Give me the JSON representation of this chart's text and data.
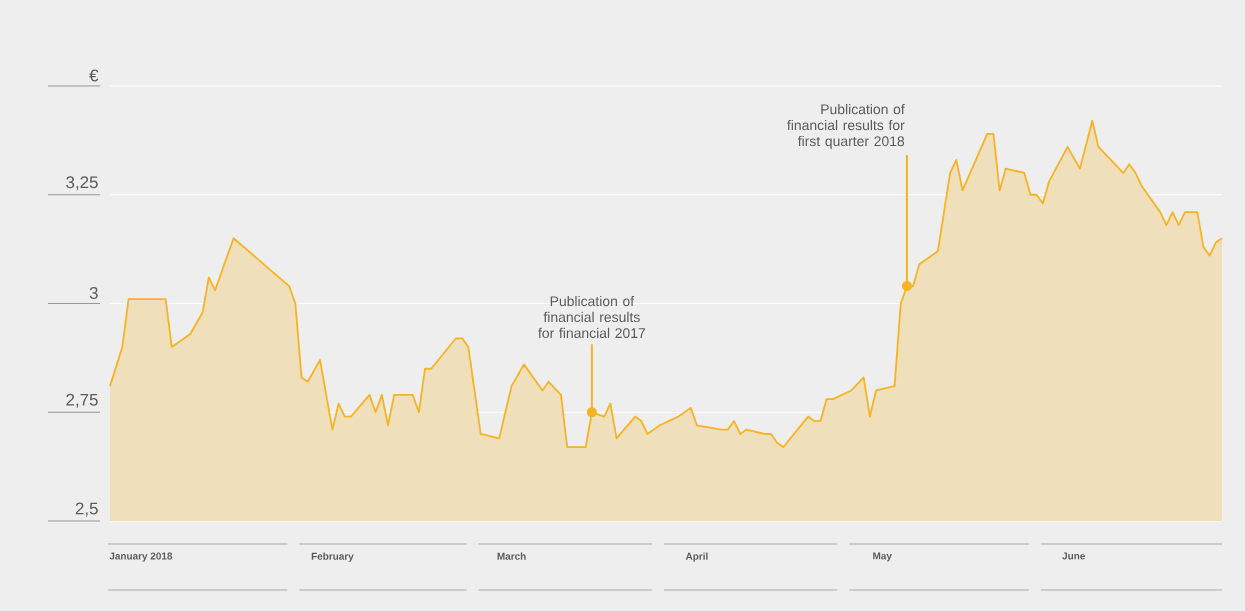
{
  "chart_data": {
    "type": "area",
    "color": "#f6b325",
    "x": [
      "2018-01-01",
      "2018-01-03",
      "2018-01-04",
      "2018-01-10",
      "2018-01-11",
      "2018-01-14",
      "2018-01-16",
      "2018-01-17",
      "2018-01-18",
      "2018-01-21",
      "2018-01-30",
      "2018-01-31",
      "2018-02-01",
      "2018-02-02",
      "2018-02-04",
      "2018-02-06",
      "2018-02-07",
      "2018-02-08",
      "2018-02-09",
      "2018-02-12",
      "2018-02-13",
      "2018-02-14",
      "2018-02-15",
      "2018-02-16",
      "2018-02-19",
      "2018-02-20",
      "2018-02-21",
      "2018-02-22",
      "2018-02-26",
      "2018-02-27",
      "2018-02-28",
      "2018-03-02",
      "2018-03-05",
      "2018-03-07",
      "2018-03-09",
      "2018-03-12",
      "2018-03-13",
      "2018-03-15",
      "2018-03-16",
      "2018-03-19",
      "2018-03-20",
      "2018-03-22",
      "2018-03-23",
      "2018-03-24",
      "2018-03-27",
      "2018-03-28",
      "2018-03-29",
      "2018-03-30",
      "2018-03-31",
      "2018-04-03",
      "2018-04-05",
      "2018-04-06",
      "2018-04-10",
      "2018-04-11",
      "2018-04-12",
      "2018-04-13",
      "2018-04-14",
      "2018-04-17",
      "2018-04-18",
      "2018-04-19",
      "2018-04-20",
      "2018-04-24",
      "2018-04-25",
      "2018-04-26",
      "2018-04-27",
      "2018-04-28",
      "2018-05-01",
      "2018-05-03",
      "2018-05-04",
      "2018-05-05",
      "2018-05-08",
      "2018-05-09",
      "2018-05-10",
      "2018-05-11",
      "2018-05-12",
      "2018-05-15",
      "2018-05-17",
      "2018-05-18",
      "2018-05-19",
      "2018-05-23",
      "2018-05-24",
      "2018-05-25",
      "2018-05-26",
      "2018-05-29",
      "2018-05-30",
      "2018-05-31",
      "2018-06-01",
      "2018-06-02",
      "2018-06-05",
      "2018-06-07",
      "2018-06-09",
      "2018-06-10",
      "2018-06-14",
      "2018-06-15",
      "2018-06-16",
      "2018-06-17",
      "2018-06-20",
      "2018-06-21",
      "2018-06-22",
      "2018-06-23",
      "2018-06-24",
      "2018-06-26",
      "2018-06-27",
      "2018-06-28",
      "2018-06-29",
      "2018-06-30"
    ],
    "values": [
      2.81,
      2.9,
      3.01,
      3.01,
      2.9,
      2.93,
      2.98,
      3.06,
      3.03,
      3.15,
      3.04,
      3.0,
      2.83,
      2.82,
      2.87,
      2.71,
      2.77,
      2.74,
      2.74,
      2.79,
      2.75,
      2.79,
      2.72,
      2.79,
      2.79,
      2.75,
      2.85,
      2.85,
      2.92,
      2.92,
      2.9,
      2.7,
      2.69,
      2.81,
      2.86,
      2.8,
      2.82,
      2.79,
      2.67,
      2.67,
      2.75,
      2.74,
      2.77,
      2.69,
      2.74,
      2.73,
      2.7,
      2.71,
      2.72,
      2.74,
      2.76,
      2.72,
      2.71,
      2.71,
      2.73,
      2.7,
      2.71,
      2.7,
      2.7,
      2.68,
      2.67,
      2.74,
      2.73,
      2.73,
      2.78,
      2.78,
      2.8,
      2.83,
      2.74,
      2.8,
      2.81,
      3.0,
      3.04,
      3.04,
      3.09,
      3.12,
      3.3,
      3.33,
      3.26,
      3.39,
      3.39,
      3.26,
      3.31,
      3.3,
      3.25,
      3.25,
      3.23,
      3.28,
      3.36,
      3.31,
      3.42,
      3.36,
      3.3,
      3.32,
      3.3,
      3.27,
      3.21,
      3.18,
      3.21,
      3.18,
      3.21,
      3.21,
      3.13,
      3.11,
      3.14,
      3.15
    ],
    "xlim": [
      "2018-01-01",
      "2018-06-30"
    ],
    "xticks": [
      {
        "value": "2018-01-06",
        "label": "January 2018"
      },
      {
        "value": "2018-02-06",
        "label": "February"
      },
      {
        "value": "2018-03-07",
        "label": "March"
      },
      {
        "value": "2018-04-06",
        "label": "April"
      },
      {
        "value": "2018-05-06",
        "label": "May"
      },
      {
        "value": "2018-06-06",
        "label": "June"
      }
    ],
    "ylim": [
      2.5,
      3.5
    ],
    "yticks": [
      {
        "value": 2.5,
        "label": "2,5"
      },
      {
        "value": 2.75,
        "label": "2,75"
      },
      {
        "value": 3,
        "label": "3"
      },
      {
        "value": 3.25,
        "label": "3,25"
      },
      {
        "value": 3.5,
        "label": "€"
      }
    ],
    "grid": "y",
    "annotations": [
      {
        "text": "Publication of financial results for financial 2017",
        "x": "2018-03-20",
        "y": 2.75
      },
      {
        "text": "Publication of financial results for first quarter 2018",
        "x": "2018-05-10",
        "y": 3.04
      }
    ]
  }
}
